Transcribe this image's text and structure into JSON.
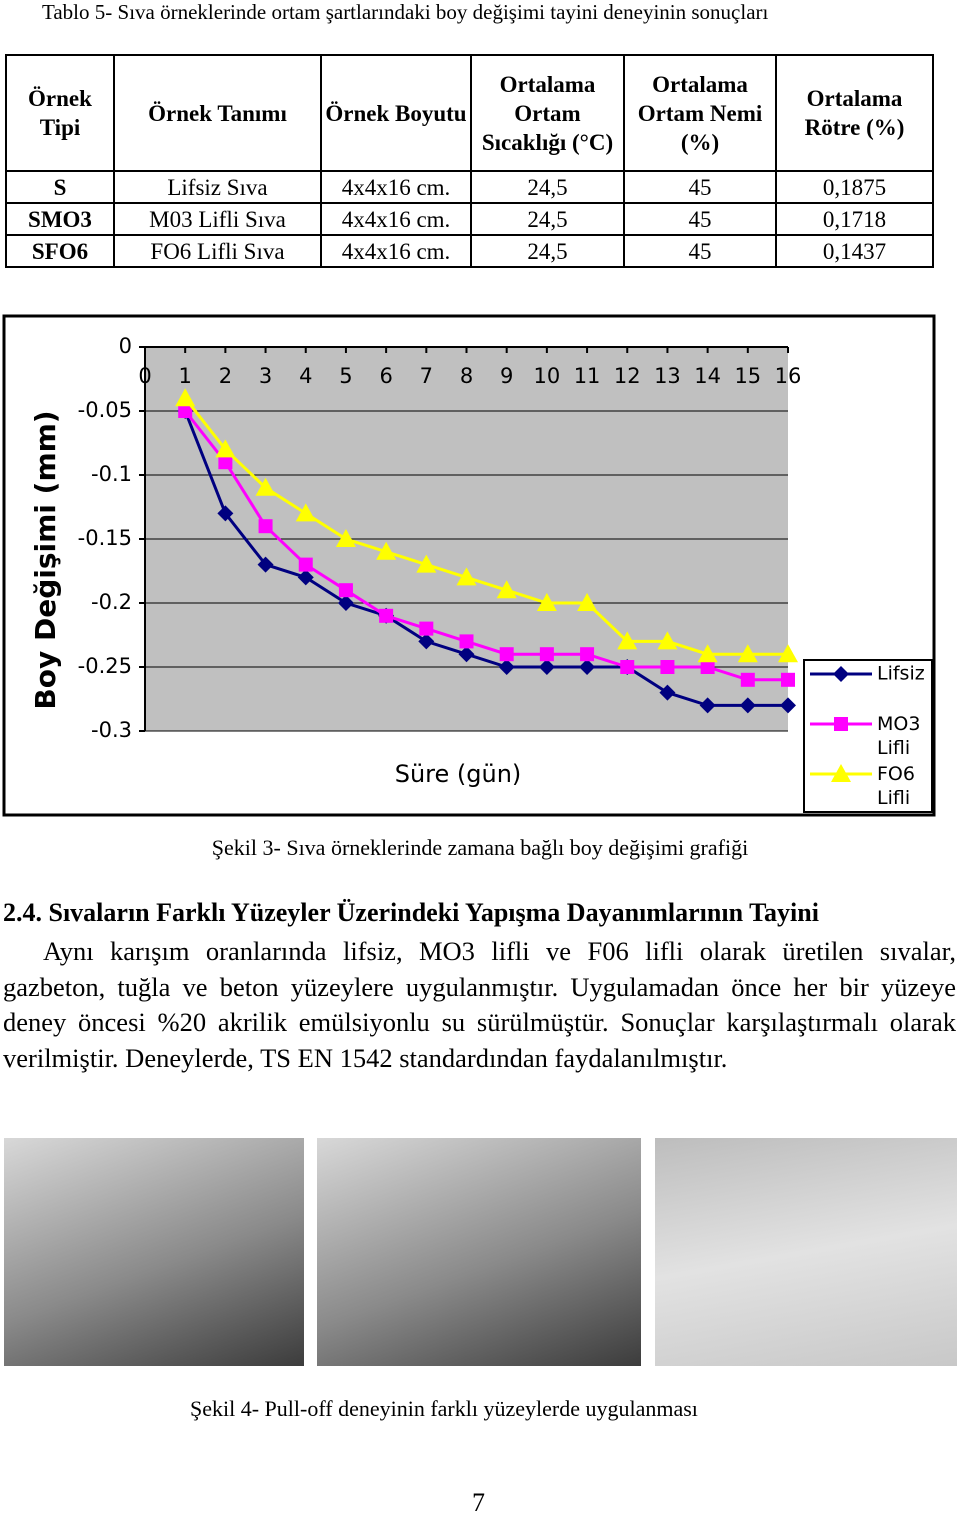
{
  "table": {
    "caption": "Tablo 5- Sıva örneklerinde ortam şartlarındaki boy değişimi tayini deneyinin sonuçları",
    "header": [
      "Örnek Tipi",
      "Örnek Tanımı",
      "Örnek Boyutu",
      "Ortalama Ortam Sıcaklığı (°C)",
      "Ortalama Ortam Nemi (%)",
      "Ortalama Rötre (%)"
    ],
    "rows": [
      [
        "S",
        "Lifsiz Sıva",
        "4x4x16 cm.",
        "24,5",
        "45",
        "0,1875"
      ],
      [
        "SMO3",
        "M03 Lifli Sıva",
        "4x4x16 cm.",
        "24,5",
        "45",
        "0,1718"
      ],
      [
        "SFO6",
        "FO6 Lifli Sıva",
        "4x4x16 cm.",
        "24,5",
        "45",
        "0,1437"
      ]
    ]
  },
  "chart_data": {
    "type": "line",
    "y_label": "Boy Değişimi (mm)",
    "x_label": "Süre (gün)",
    "caption": "Şekil 3- Sıva örneklerinde zamana bağlı boy değişimi grafiği",
    "x": [
      1,
      2,
      3,
      4,
      5,
      6,
      7,
      8,
      9,
      10,
      11,
      12,
      13,
      14,
      15,
      16
    ],
    "xlim": [
      0,
      16
    ],
    "xticks": [
      0,
      1,
      2,
      3,
      4,
      5,
      6,
      7,
      8,
      9,
      10,
      11,
      12,
      13,
      14,
      15,
      16
    ],
    "ylim": [
      -0.3,
      0
    ],
    "yticks": [
      0,
      -0.05,
      -0.1,
      -0.15,
      -0.2,
      -0.25,
      -0.3
    ],
    "grid": true,
    "legend": "right",
    "series": [
      {
        "name": "Lifsiz",
        "color": "#000080",
        "marker": "diamond",
        "values": [
          -0.05,
          -0.13,
          -0.17,
          -0.18,
          -0.2,
          -0.21,
          -0.23,
          -0.24,
          -0.25,
          -0.25,
          -0.25,
          -0.25,
          -0.27,
          -0.28,
          -0.28,
          -0.28
        ]
      },
      {
        "name": "MO3 Lifli",
        "color": "#ff00ff",
        "marker": "square",
        "values": [
          -0.05,
          -0.09,
          -0.14,
          -0.17,
          -0.19,
          -0.21,
          -0.22,
          -0.23,
          -0.24,
          -0.24,
          -0.24,
          -0.25,
          -0.25,
          -0.25,
          -0.26,
          -0.26
        ]
      },
      {
        "name": "FO6 Lifli",
        "color": "#ffff00",
        "marker": "triangle",
        "values": [
          -0.04,
          -0.08,
          -0.11,
          -0.13,
          -0.15,
          -0.16,
          -0.17,
          -0.18,
          -0.19,
          -0.2,
          -0.2,
          -0.23,
          -0.23,
          -0.24,
          -0.24,
          -0.24
        ]
      }
    ]
  },
  "section": {
    "heading": "2.4. Sıvaların Farklı Yüzeyler Üzerindeki Yapışma Dayanımlarının Tayini",
    "paragraph": "Aynı karışım oranlarında lifsiz, MO3 lifli ve F06 lifli olarak üretilen sıvalar, gazbeton, tuğla ve beton yüzeylere uygulanmıştır. Uygulamadan önce her bir yüzeye deney öncesi %20 akrilik emülsiyonlu su sürülmüştür. Sonuçlar karşılaştırmalı olarak verilmiştir. Deneylerde, TS EN 1542 standardından faydalanılmıştır."
  },
  "figure": {
    "caption": "Şekil 4- Pull-off deneyinin farklı yüzeylerde uygulanması"
  },
  "page_number": "7"
}
